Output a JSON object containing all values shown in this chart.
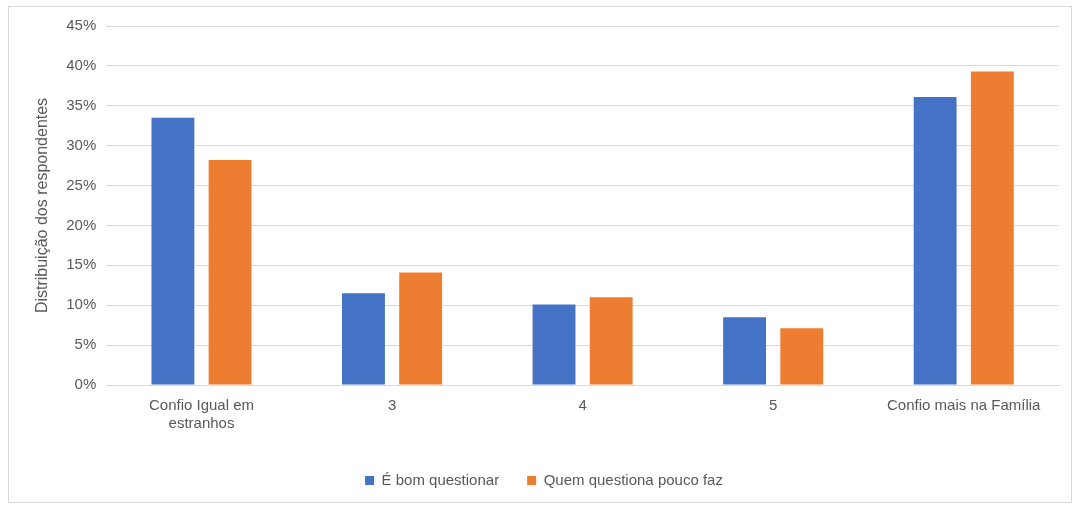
{
  "chart_data": {
    "type": "bar",
    "ylabel": "Distribuição dos respondentes",
    "categories": [
      "Confio Igual em estranhos",
      "3",
      "4",
      "5",
      "Confio mais na Família"
    ],
    "series": [
      {
        "name": "É bom questionar",
        "color": "#4472c4",
        "values": [
          33.5,
          11.5,
          10.1,
          8.5,
          36.1
        ]
      },
      {
        "name": "Quem questiona pouco faz",
        "color": "#ed7d31",
        "values": [
          28.2,
          14.1,
          11.0,
          7.1,
          39.3
        ]
      }
    ],
    "ylim": [
      0,
      45
    ],
    "yticks": [
      {
        "value": 0,
        "label": "0%"
      },
      {
        "value": 5,
        "label": "5%"
      },
      {
        "value": 10,
        "label": "10%"
      },
      {
        "value": 15,
        "label": "15%"
      },
      {
        "value": 20,
        "label": "20%"
      },
      {
        "value": 25,
        "label": "25%"
      },
      {
        "value": 30,
        "label": "30%"
      },
      {
        "value": 35,
        "label": "35%"
      },
      {
        "value": 40,
        "label": "40%"
      },
      {
        "value": 45,
        "label": "45%"
      }
    ],
    "grid": "y",
    "legend": "bottom"
  }
}
